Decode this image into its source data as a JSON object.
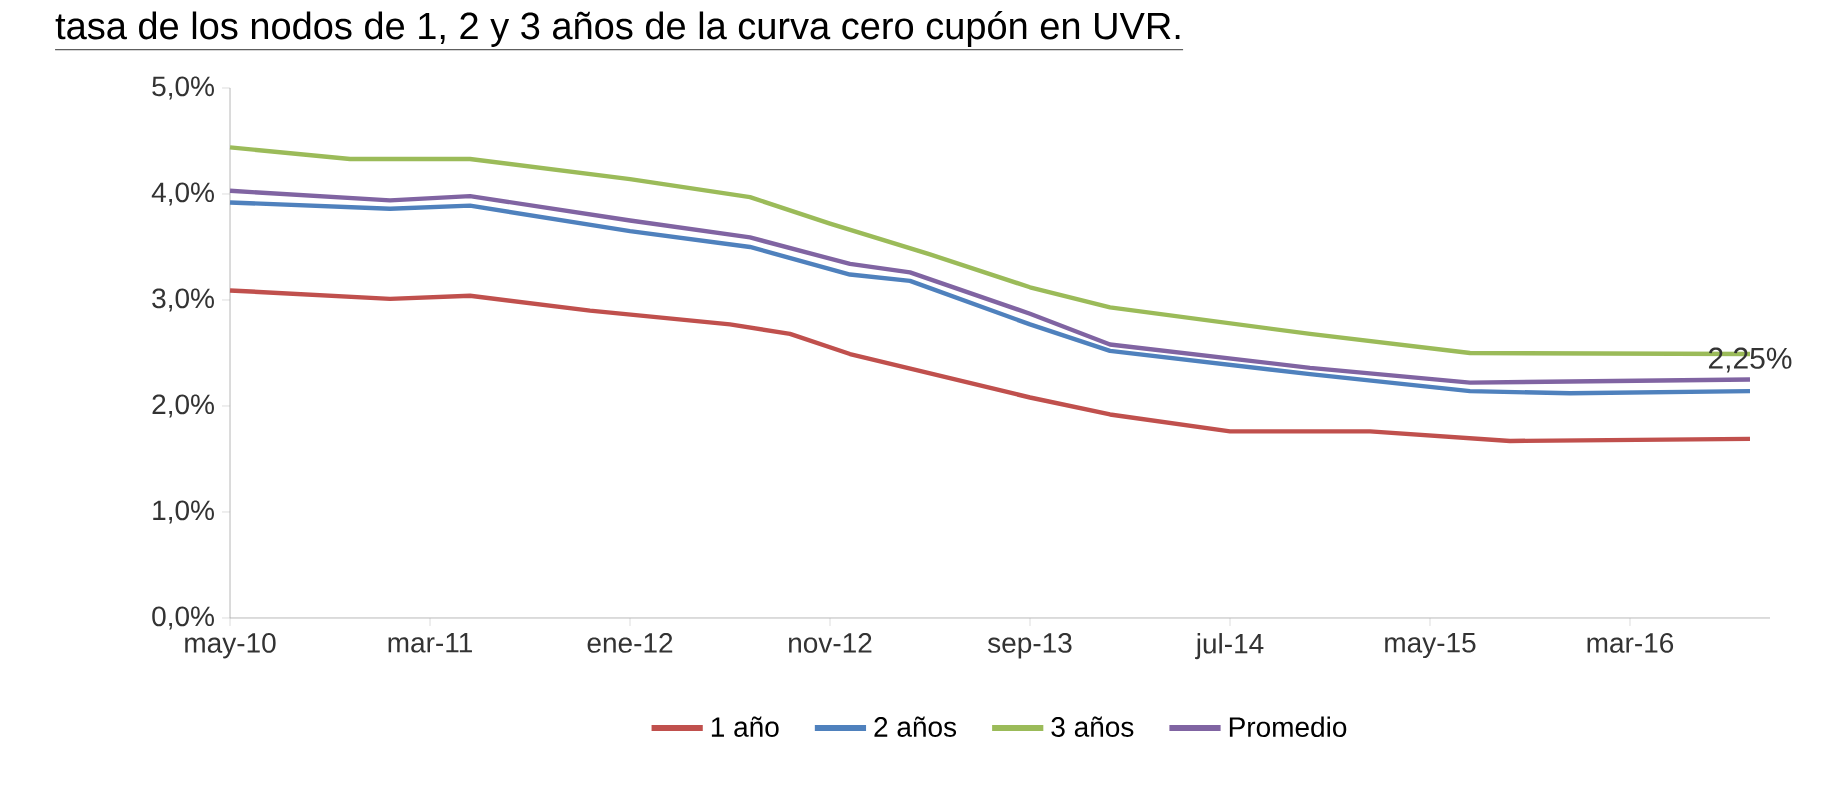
{
  "chart_data": {
    "type": "line",
    "title": "tasa de los nodos de 1, 2 y 3 años de la curva cero cupón en UVR.",
    "xlim": [
      "2010-05",
      "2016-10"
    ],
    "xticks": [
      {
        "value": "2010-05",
        "label": "may-10"
      },
      {
        "value": "2011-03",
        "label": "mar-11"
      },
      {
        "value": "2012-01",
        "label": "ene-12"
      },
      {
        "value": "2012-11",
        "label": "nov-12"
      },
      {
        "value": "2013-09",
        "label": "sep-13"
      },
      {
        "value": "2014-07",
        "label": "jul-14"
      },
      {
        "value": "2015-05",
        "label": "may-15"
      },
      {
        "value": "2016-03",
        "label": "mar-16"
      }
    ],
    "ylim": [
      0,
      5
    ],
    "yticks": [
      {
        "value": 0,
        "label": "0,0%"
      },
      {
        "value": 1,
        "label": "1,0%"
      },
      {
        "value": 2,
        "label": "2,0%"
      },
      {
        "value": 3,
        "label": "3,0%"
      },
      {
        "value": 4,
        "label": "4,0%"
      },
      {
        "value": 5,
        "label": "5,0%"
      }
    ],
    "legend": "bottom",
    "series": [
      {
        "name": "1 año",
        "color": "#c0504d",
        "x": [
          "2010-05",
          "2011-01",
          "2011-05",
          "2011-11",
          "2012-06",
          "2012-09",
          "2012-12",
          "2013-09",
          "2014-01",
          "2014-07",
          "2015-02",
          "2015-09",
          "2016-09"
        ],
        "values": [
          3.09,
          3.01,
          3.04,
          2.9,
          2.77,
          2.68,
          2.49,
          2.08,
          1.92,
          1.76,
          1.76,
          1.67,
          1.69
        ]
      },
      {
        "name": "2 años",
        "color": "#4f81bd",
        "x": [
          "2010-05",
          "2011-01",
          "2011-05",
          "2012-01",
          "2012-07",
          "2012-12",
          "2013-03",
          "2013-09",
          "2014-01",
          "2014-11",
          "2015-07",
          "2015-12",
          "2016-09"
        ],
        "values": [
          3.92,
          3.86,
          3.89,
          3.65,
          3.5,
          3.24,
          3.18,
          2.77,
          2.52,
          2.3,
          2.14,
          2.12,
          2.14
        ]
      },
      {
        "name": "3 años",
        "color": "#9bbb59",
        "x": [
          "2010-05",
          "2010-11",
          "2011-05",
          "2012-01",
          "2012-07",
          "2012-11",
          "2013-04",
          "2013-09",
          "2014-01",
          "2014-11",
          "2015-07",
          "2016-09"
        ],
        "values": [
          4.44,
          4.33,
          4.33,
          4.14,
          3.97,
          3.72,
          3.43,
          3.12,
          2.93,
          2.68,
          2.5,
          2.49
        ]
      },
      {
        "name": "Promedio",
        "color": "#8064a2",
        "x": [
          "2010-05",
          "2011-01",
          "2011-05",
          "2012-01",
          "2012-07",
          "2012-12",
          "2013-03",
          "2013-09",
          "2014-01",
          "2014-11",
          "2015-07",
          "2016-09"
        ],
        "values": [
          4.03,
          3.94,
          3.98,
          3.75,
          3.59,
          3.34,
          3.26,
          2.87,
          2.58,
          2.36,
          2.22,
          2.25
        ]
      }
    ],
    "annotations": [
      {
        "text": "2,25%",
        "x": "2016-09",
        "y": 2.25
      }
    ]
  }
}
